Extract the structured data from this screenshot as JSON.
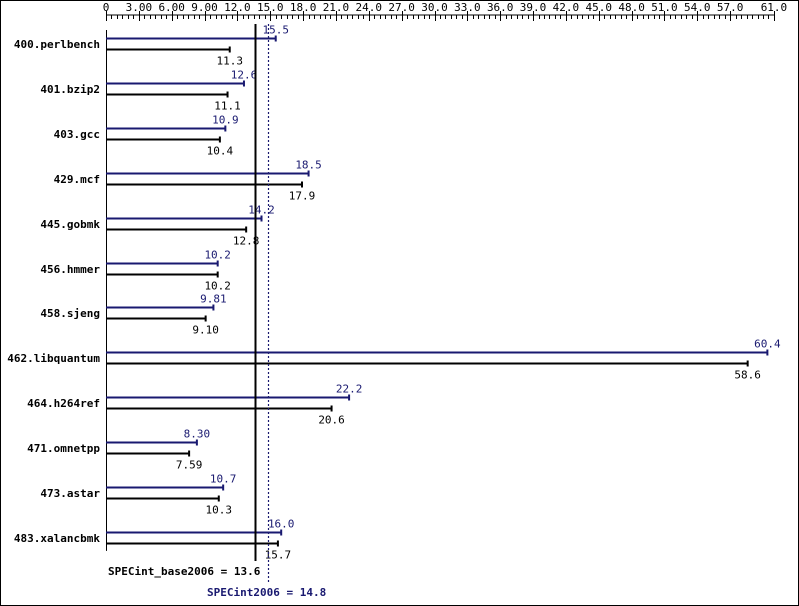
{
  "chart_data": {
    "type": "bar",
    "orientation": "horizontal",
    "x_axis": {
      "min": 0,
      "max": 61.0,
      "ticks": [
        0,
        3.0,
        6.0,
        9.0,
        12.0,
        15.0,
        18.0,
        21.0,
        24.0,
        27.0,
        30.0,
        33.0,
        36.0,
        39.0,
        42.0,
        45.0,
        48.0,
        51.0,
        54.0,
        57.0,
        61.0
      ],
      "tick_labels": [
        "0",
        "3.00",
        "6.00",
        "9.00",
        "12.0",
        "15.0",
        "18.0",
        "21.0",
        "24.0",
        "27.0",
        "30.0",
        "33.0",
        "36.0",
        "39.0",
        "42.0",
        "45.0",
        "48.0",
        "51.0",
        "54.0",
        "57.0",
        "61.0"
      ],
      "position": "top"
    },
    "categories": [
      "400.perlbench",
      "401.bzip2",
      "403.gcc",
      "429.mcf",
      "445.gobmk",
      "456.hmmer",
      "458.sjeng",
      "462.libquantum",
      "464.h264ref",
      "471.omnetpp",
      "473.astar",
      "483.xalancbmk"
    ],
    "series": [
      {
        "key": "peak",
        "color": "#191970",
        "values": [
          15.5,
          12.6,
          10.9,
          18.5,
          14.2,
          10.2,
          9.81,
          60.4,
          22.2,
          8.3,
          10.7,
          16.0
        ],
        "labels": [
          "15.5",
          "12.6",
          "10.9",
          "18.5",
          "14.2",
          "10.2",
          "9.81",
          "60.4",
          "22.2",
          "8.30",
          "10.7",
          "16.0"
        ]
      },
      {
        "key": "base",
        "color": "#000000",
        "values": [
          11.3,
          11.1,
          10.4,
          17.9,
          12.8,
          10.2,
          9.1,
          58.6,
          20.6,
          7.59,
          10.3,
          15.7
        ],
        "labels": [
          "11.3",
          "11.1",
          "10.4",
          "17.9",
          "12.8",
          "10.2",
          "9.10",
          "58.6",
          "20.6",
          "7.59",
          "10.3",
          "15.7"
        ]
      }
    ],
    "reference_lines": [
      {
        "key": "base",
        "value": 13.6,
        "label": "SPECint_base2006 = 13.6",
        "color": "#000000",
        "style": "solid"
      },
      {
        "key": "peak",
        "value": 14.8,
        "label": "SPECint2006 = 14.8",
        "color": "#191970",
        "style": "dotted"
      }
    ],
    "grid": false,
    "legend": "none"
  }
}
